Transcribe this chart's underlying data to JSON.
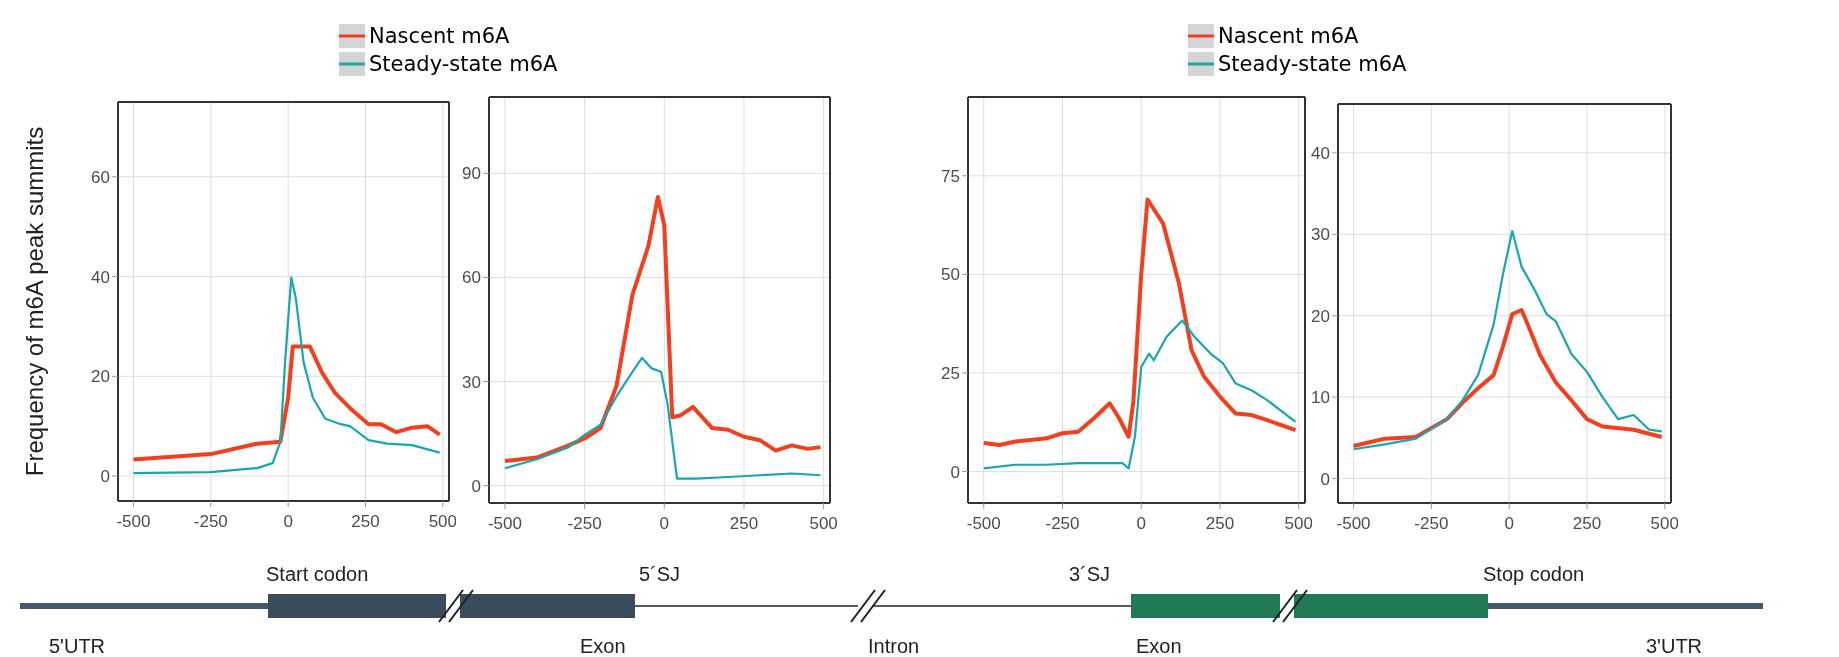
{
  "chart_data": [
    {
      "type": "line",
      "ylabel": "Frequency of m6A peak summits",
      "xlim": [
        -550,
        520
      ],
      "xticks": [
        -500,
        -250,
        0,
        250,
        500
      ],
      "ylim": [
        -5,
        75
      ],
      "yticks": [
        0,
        20,
        40,
        60
      ],
      "grid": true,
      "legend": false,
      "series": [
        {
          "color": "#f0401f",
          "x": [
            -500,
            -250,
            -100,
            -25,
            0,
            15,
            70,
            110,
            150,
            200,
            260,
            300,
            350,
            400,
            450,
            490
          ],
          "values": [
            3.3,
            4.4,
            6.5,
            6.9,
            15.7,
            26,
            26,
            20.7,
            16.8,
            13.6,
            10.4,
            10.4,
            8.8,
            9.7,
            10,
            8.3
          ]
        },
        {
          "color": "#19a6ad",
          "x": [
            -500,
            -250,
            -100,
            -50,
            -25,
            -10,
            10,
            25,
            50,
            80,
            120,
            170,
            200,
            260,
            320,
            400,
            490
          ],
          "values": [
            0.6,
            0.8,
            1.6,
            2.6,
            6.9,
            22.8,
            39.8,
            35.6,
            22.8,
            15.7,
            11.5,
            10.4,
            10,
            7.2,
            6.5,
            6.2,
            4.7
          ]
        }
      ]
    },
    {
      "type": "line",
      "xlim": [
        -550,
        520
      ],
      "xticks": [
        -500,
        -250,
        0,
        250,
        500
      ],
      "ylim": [
        -5,
        112
      ],
      "yticks": [
        0,
        30,
        60,
        90
      ],
      "grid": true,
      "legend": "top left",
      "series": [
        {
          "name": "Nascent m6A",
          "color": "#f0401f",
          "x": [
            -500,
            -400,
            -300,
            -250,
            -200,
            -150,
            -100,
            -50,
            -20,
            0,
            25,
            50,
            90,
            150,
            200,
            250,
            300,
            350,
            400,
            450,
            490
          ],
          "values": [
            7.1,
            8.1,
            11.6,
            13.6,
            16.6,
            28.7,
            55,
            69,
            83.2,
            75,
            19.7,
            20.2,
            22.7,
            16.6,
            16.1,
            14.1,
            13.1,
            10.1,
            11.6,
            10.6,
            11.1
          ]
        },
        {
          "name": "Steady-state m6A",
          "color": "#19a6ad",
          "x": [
            -500,
            -400,
            -300,
            -250,
            -200,
            -150,
            -100,
            -70,
            -40,
            -10,
            10,
            40,
            100,
            200,
            300,
            400,
            490
          ],
          "values": [
            5,
            7.6,
            11.1,
            14.6,
            17.6,
            25.7,
            32.8,
            36.8,
            33.8,
            32.8,
            23.7,
            2,
            2,
            2.5,
            3,
            3.5,
            3
          ]
        }
      ]
    },
    {
      "type": "line",
      "xlim": [
        -550,
        520
      ],
      "xticks": [
        -500,
        -250,
        0,
        250,
        500
      ],
      "ylim": [
        -8,
        95
      ],
      "yticks": [
        0,
        25,
        50,
        75
      ],
      "grid": true,
      "legend": false,
      "series": [
        {
          "color": "#f0401f",
          "x": [
            -500,
            -450,
            -400,
            -300,
            -250,
            -200,
            -150,
            -100,
            -70,
            -40,
            -25,
            0,
            20,
            70,
            120,
            160,
            200,
            250,
            300,
            350,
            400,
            490
          ],
          "values": [
            7.2,
            6.7,
            7.6,
            8.4,
            9.7,
            10.1,
            13.5,
            17.3,
            13.5,
            8.8,
            17.7,
            50,
            69,
            62.8,
            47.6,
            30.7,
            24,
            19,
            14.7,
            14.3,
            13,
            10.5
          ]
        },
        {
          "color": "#19a6ad",
          "x": [
            -500,
            -400,
            -300,
            -200,
            -100,
            -60,
            -40,
            -20,
            0,
            25,
            40,
            80,
            130,
            170,
            220,
            260,
            300,
            350,
            400,
            490
          ],
          "values": [
            0.8,
            1.7,
            1.7,
            2.1,
            2.1,
            2.1,
            0.8,
            8.8,
            26.5,
            29.9,
            28.2,
            34.1,
            38.3,
            34.1,
            29.9,
            27.4,
            22.3,
            20.6,
            18.1,
            12.6
          ]
        }
      ]
    },
    {
      "type": "line",
      "xlim": [
        -550,
        520
      ],
      "xticks": [
        -500,
        -250,
        0,
        250,
        500
      ],
      "ylim": [
        -3,
        46
      ],
      "yticks": [
        0,
        10,
        20,
        30,
        40
      ],
      "grid": true,
      "legend": "top left",
      "series": [
        {
          "name": "Nascent m6A",
          "color": "#f0401f",
          "x": [
            -500,
            -400,
            -300,
            -200,
            -150,
            -100,
            -50,
            -20,
            10,
            40,
            60,
            100,
            150,
            200,
            250,
            300,
            400,
            490
          ],
          "values": [
            4,
            4.9,
            5.1,
            7.3,
            9.3,
            11.1,
            12.7,
            16.2,
            20.2,
            20.7,
            18.9,
            15.1,
            11.8,
            9.6,
            7.3,
            6.4,
            6,
            5.1
          ]
        },
        {
          "name": "Steady-state m6A",
          "color": "#19a6ad",
          "x": [
            -500,
            -400,
            -300,
            -200,
            -150,
            -100,
            -50,
            -20,
            10,
            40,
            80,
            120,
            150,
            200,
            250,
            300,
            350,
            400,
            450,
            490
          ],
          "values": [
            3.6,
            4.2,
            4.9,
            7.3,
            9.6,
            12.7,
            18.9,
            25.1,
            30.4,
            26,
            23.3,
            20.2,
            19.3,
            15.3,
            13.1,
            10,
            7.3,
            7.8,
            6,
            5.8
          ]
        }
      ]
    },
    {
      "type": "other",
      "annotations": [
        "Start codon",
        "5´SJ",
        "3´SJ",
        "Stop codon",
        "5'UTR",
        "Exon",
        "Intron",
        "Exon",
        "3'UTR"
      ]
    }
  ]
}
